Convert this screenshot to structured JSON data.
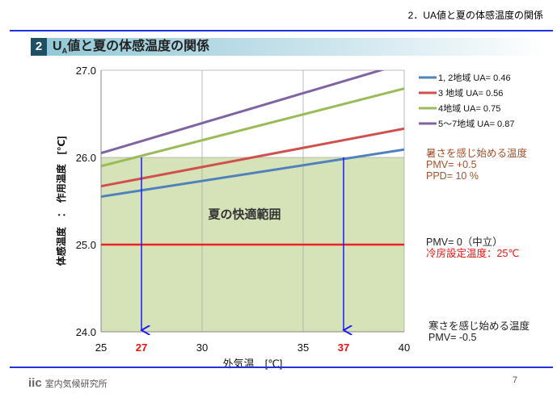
{
  "header": {
    "section": "2．UA値と夏の体感温度の関係"
  },
  "title": {
    "number": "2",
    "prefix": "U",
    "sub": "A",
    "rest": "値と夏の体感温度の関係"
  },
  "annotations": {
    "hot_title": "暑さを感じ始める温度",
    "hot_pmv": "PMV= +0.5",
    "hot_ppd": "PPD= 10 %",
    "neutral_pmv": "PMV= 0（中立）",
    "cooling_set": "冷房設定温度：25℃",
    "cold_title": "寒さを感じ始める温度",
    "cold_pmv": "PMV= -0.5"
  },
  "footer": {
    "logo": "iic",
    "org": "室内気候研究所",
    "page": "7"
  },
  "chart_data": {
    "type": "line",
    "xlabel": "外気温　[℃]",
    "ylabel": "体感温度　：　作用温度　[℃]",
    "xlim": [
      25,
      40
    ],
    "ylim": [
      24,
      27
    ],
    "xticks": [
      "25",
      "30",
      "35",
      "40"
    ],
    "xtick_values": [
      25,
      30,
      35,
      40
    ],
    "yticks": [
      "24.0",
      "25.0",
      "26.0",
      "27.0"
    ],
    "ytick_values": [
      24,
      25,
      26,
      27
    ],
    "highlight_ticks": [
      {
        "value": 27,
        "label": "27"
      },
      {
        "value": 37,
        "label": "37"
      }
    ],
    "comfort_zone": {
      "label": "夏の快適範囲",
      "y": [
        24,
        26
      ],
      "color": "#d6e3b8"
    },
    "reference_line": {
      "y": 25,
      "color": "#ee2222"
    },
    "arrows_x": [
      27,
      37
    ],
    "legend_position": "right",
    "series": [
      {
        "name": "1, 2地域  UA= 0.46",
        "color": "#4f81bd",
        "x": [
          25,
          40
        ],
        "y": [
          25.55,
          26.09
        ]
      },
      {
        "name": "3 地域  UA= 0.56",
        "color": "#d0504d",
        "x": [
          25,
          40
        ],
        "y": [
          25.67,
          26.33
        ]
      },
      {
        "name": "4地域  UA= 0.75",
        "color": "#9bbb59",
        "x": [
          25,
          40
        ],
        "y": [
          25.9,
          26.79
        ]
      },
      {
        "name": "5～7地域  UA= 0.87",
        "color": "#8064a2",
        "x": [
          25,
          40
        ],
        "y": [
          26.05,
          27.08
        ]
      }
    ]
  }
}
